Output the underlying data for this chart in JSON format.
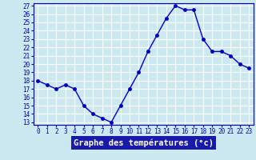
{
  "hours": [
    0,
    1,
    2,
    3,
    4,
    5,
    6,
    7,
    8,
    9,
    10,
    11,
    12,
    13,
    14,
    15,
    16,
    17,
    18,
    19,
    20,
    21,
    22,
    23
  ],
  "temps": [
    18,
    17.5,
    17,
    17.5,
    17,
    15,
    14,
    13.5,
    13,
    15,
    17,
    19,
    21.5,
    23.5,
    25.5,
    27,
    26.5,
    26.5,
    23,
    21.5,
    21.5,
    21,
    20,
    19.5
  ],
  "ylim": [
    13,
    27
  ],
  "yticks": [
    13,
    14,
    15,
    16,
    17,
    18,
    19,
    20,
    21,
    22,
    23,
    24,
    25,
    26,
    27
  ],
  "xticks": [
    0,
    1,
    2,
    3,
    4,
    5,
    6,
    7,
    8,
    9,
    10,
    11,
    12,
    13,
    14,
    15,
    16,
    17,
    18,
    19,
    20,
    21,
    22,
    23
  ],
  "xlabel": "Graphe des températures (°c)",
  "line_color": "#0000cc",
  "marker": "o",
  "marker_size": 2.5,
  "bg_color": "#cce8f0",
  "plot_bg": "#cce8f0",
  "grid_color": "#ffffff",
  "xlabel_bg": "#1a1aaa",
  "xlabel_color": "#ffffff",
  "tick_label_color": "#0000bb",
  "tick_fontsize": 5.5,
  "xlabel_fontsize": 7.5,
  "linewidth": 1.0
}
